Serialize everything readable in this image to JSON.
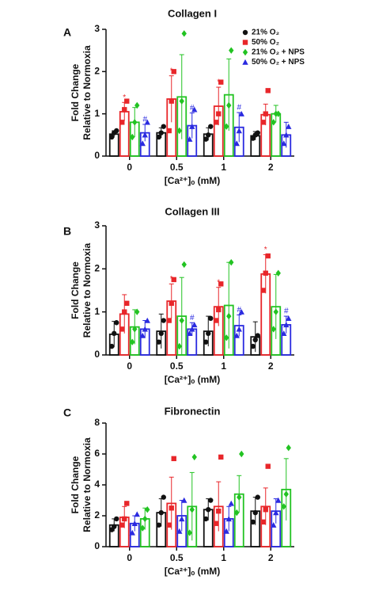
{
  "chart_data": [
    {
      "type": "bar",
      "panel": "A",
      "title": "Collagen I",
      "xlabel": "[Ca²⁺]ₒ (mM)",
      "ylabel": [
        "Fold Change",
        "Relative to Normoxia"
      ],
      "categories": [
        "0",
        "0.5",
        "1",
        "2"
      ],
      "ylim": [
        0,
        3
      ],
      "yticks": [
        0,
        1,
        2,
        3
      ],
      "legend": "upper right",
      "series": [
        {
          "name": "21% O₂",
          "color": "#111111",
          "marker": "circle",
          "values": [
            0.52,
            0.55,
            0.52,
            0.48
          ],
          "errors": [
            0.08,
            0.12,
            0.15,
            0.1
          ],
          "points": [
            [
              0.45,
              0.55,
              0.6
            ],
            [
              0.45,
              0.55,
              0.7
            ],
            [
              0.4,
              0.5,
              0.7
            ],
            [
              0.42,
              0.5,
              0.55
            ]
          ],
          "annotations": [
            null,
            null,
            null,
            null
          ]
        },
        {
          "name": "50% O₂",
          "color": "#e8262a",
          "marker": "square",
          "values": [
            1.05,
            1.35,
            1.18,
            0.98
          ],
          "errors": [
            0.22,
            0.55,
            0.45,
            0.25
          ],
          "points": [
            [
              0.8,
              1.1,
              1.3
            ],
            [
              0.6,
              1.3,
              2.0
            ],
            [
              0.8,
              1.0,
              1.75
            ],
            [
              0.8,
              1.0,
              1.55
            ]
          ],
          "annotations": [
            "*",
            "*",
            "*",
            null
          ]
        },
        {
          "name": "21% O₂ + NPS",
          "color": "#22c322",
          "marker": "diamond",
          "values": [
            0.8,
            1.4,
            1.45,
            1.0
          ],
          "errors": [
            0.35,
            1.0,
            0.85,
            0.2
          ],
          "points": [
            [
              0.45,
              0.8,
              1.2
            ],
            [
              0.6,
              1.3,
              2.9
            ],
            [
              0.7,
              1.2,
              2.5
            ],
            [
              0.8,
              1.0,
              1.0
            ]
          ],
          "annotations": [
            null,
            null,
            null,
            null
          ]
        },
        {
          "name": "50% O₂ + NPS",
          "color": "#2a2ae0",
          "marker": "triangle",
          "values": [
            0.55,
            0.72,
            0.68,
            0.5
          ],
          "errors": [
            0.2,
            0.3,
            0.35,
            0.3
          ],
          "points": [
            [
              0.3,
              0.5,
              0.8
            ],
            [
              0.4,
              0.7,
              1.1
            ],
            [
              0.3,
              0.6,
              1.0
            ],
            [
              0.3,
              0.5,
              0.7
            ]
          ],
          "annotations": [
            "#",
            "#",
            "#",
            null
          ]
        }
      ]
    },
    {
      "type": "bar",
      "panel": "B",
      "title": "Collagen III",
      "xlabel": "[Ca²⁺]ₒ (mM)",
      "ylabel": [
        "Fold Change",
        "Relative to Normoxia"
      ],
      "categories": [
        "0",
        "0.5",
        "1",
        "2"
      ],
      "ylim": [
        0,
        3
      ],
      "yticks": [
        0,
        1,
        2,
        3
      ],
      "series": [
        {
          "color": "#111111",
          "marker": "circle",
          "values": [
            0.48,
            0.55,
            0.55,
            0.42
          ],
          "errors": [
            0.3,
            0.4,
            0.35,
            0.35
          ],
          "points": [
            [
              0.2,
              0.5,
              0.75
            ],
            [
              0.3,
              0.5,
              0.8
            ],
            [
              0.3,
              0.5,
              0.85
            ],
            [
              0.2,
              0.35,
              0.45
            ]
          ],
          "annotations": [
            null,
            null,
            null,
            null
          ]
        },
        {
          "color": "#e8262a",
          "marker": "square",
          "values": [
            0.95,
            1.25,
            1.12,
            1.88
          ],
          "errors": [
            0.45,
            0.4,
            0.45,
            0.45
          ],
          "points": [
            [
              0.6,
              1.0,
              1.2
            ],
            [
              0.8,
              1.2,
              1.75
            ],
            [
              0.8,
              1.05,
              1.65
            ],
            [
              1.5,
              1.9,
              2.3
            ]
          ],
          "annotations": [
            null,
            "*",
            "*",
            "*"
          ]
        },
        {
          "color": "#22c322",
          "marker": "diamond",
          "values": [
            0.65,
            0.9,
            1.15,
            1.12
          ],
          "errors": [
            0.4,
            0.9,
            1.0,
            0.75
          ],
          "points": [
            [
              0.3,
              0.6,
              1.0
            ],
            [
              0.2,
              0.8,
              2.1
            ],
            [
              0.4,
              0.9,
              2.15
            ],
            [
              0.6,
              1.0,
              1.9
            ]
          ],
          "annotations": [
            null,
            null,
            null,
            null
          ]
        },
        {
          "color": "#2a2ae0",
          "marker": "triangle",
          "values": [
            0.6,
            0.6,
            0.68,
            0.7
          ],
          "errors": [
            0.2,
            0.15,
            0.25,
            0.2
          ],
          "points": [
            [
              0.45,
              0.6,
              0.8
            ],
            [
              0.5,
              0.6,
              0.7
            ],
            [
              0.45,
              0.6,
              1.0
            ],
            [
              0.5,
              0.7,
              0.85
            ]
          ],
          "annotations": [
            null,
            "#",
            "#",
            "#"
          ]
        }
      ]
    },
    {
      "type": "bar",
      "panel": "C",
      "title": "Fibronectin",
      "xlabel": "[Ca²⁺]ₒ (mM)",
      "ylabel": [
        "Fold Change",
        "Relative to Normoxia"
      ],
      "categories": [
        "0",
        "0.5",
        "1",
        "2"
      ],
      "ylim": [
        0,
        8
      ],
      "yticks": [
        0,
        2,
        4,
        6,
        8
      ],
      "series": [
        {
          "color": "#111111",
          "marker": "circle",
          "values": [
            1.4,
            2.2,
            2.4,
            2.3
          ],
          "errors": [
            0.4,
            0.9,
            0.7,
            0.9
          ],
          "points": [
            [
              1.1,
              1.3,
              1.8
            ],
            [
              1.4,
              2.2,
              3.2
            ],
            [
              1.8,
              2.4,
              3.0
            ],
            [
              1.6,
              2.2,
              3.2
            ]
          ],
          "annotations": [
            null,
            null,
            null,
            null
          ]
        },
        {
          "color": "#e8262a",
          "marker": "square",
          "values": [
            1.9,
            2.8,
            2.6,
            2.6
          ],
          "errors": [
            0.7,
            1.7,
            1.6,
            1.2
          ],
          "points": [
            [
              1.4,
              1.8,
              2.8
            ],
            [
              1.4,
              2.5,
              5.7
            ],
            [
              1.5,
              2.3,
              5.8
            ],
            [
              1.6,
              2.4,
              5.2
            ]
          ],
          "annotations": [
            null,
            null,
            null,
            null
          ]
        },
        {
          "color": "#2a2ae0",
          "marker": "triangle",
          "values": [
            1.5,
            2.0,
            1.8,
            2.3
          ],
          "errors": [
            0.5,
            1.0,
            0.8,
            0.8
          ],
          "points": [
            [
              0.9,
              1.5,
              2.1
            ],
            [
              1.0,
              1.8,
              3.0
            ],
            [
              1.0,
              1.8,
              2.8
            ],
            [
              1.4,
              2.2,
              3.0
            ]
          ],
          "annotations": [
            null,
            null,
            null,
            null
          ]
        },
        {
          "color": "#22c322",
          "marker": "diamond",
          "values": [
            1.8,
            2.6,
            3.4,
            3.7
          ],
          "errors": [
            0.7,
            2.2,
            1.2,
            2.0
          ],
          "points": [
            [
              1.2,
              1.8,
              2.4
            ],
            [
              0.9,
              2.4,
              5.8
            ],
            [
              2.2,
              3.2,
              6.0
            ],
            [
              2.6,
              3.4,
              6.4
            ]
          ],
          "annotations": [
            null,
            null,
            null,
            null
          ]
        }
      ]
    }
  ]
}
